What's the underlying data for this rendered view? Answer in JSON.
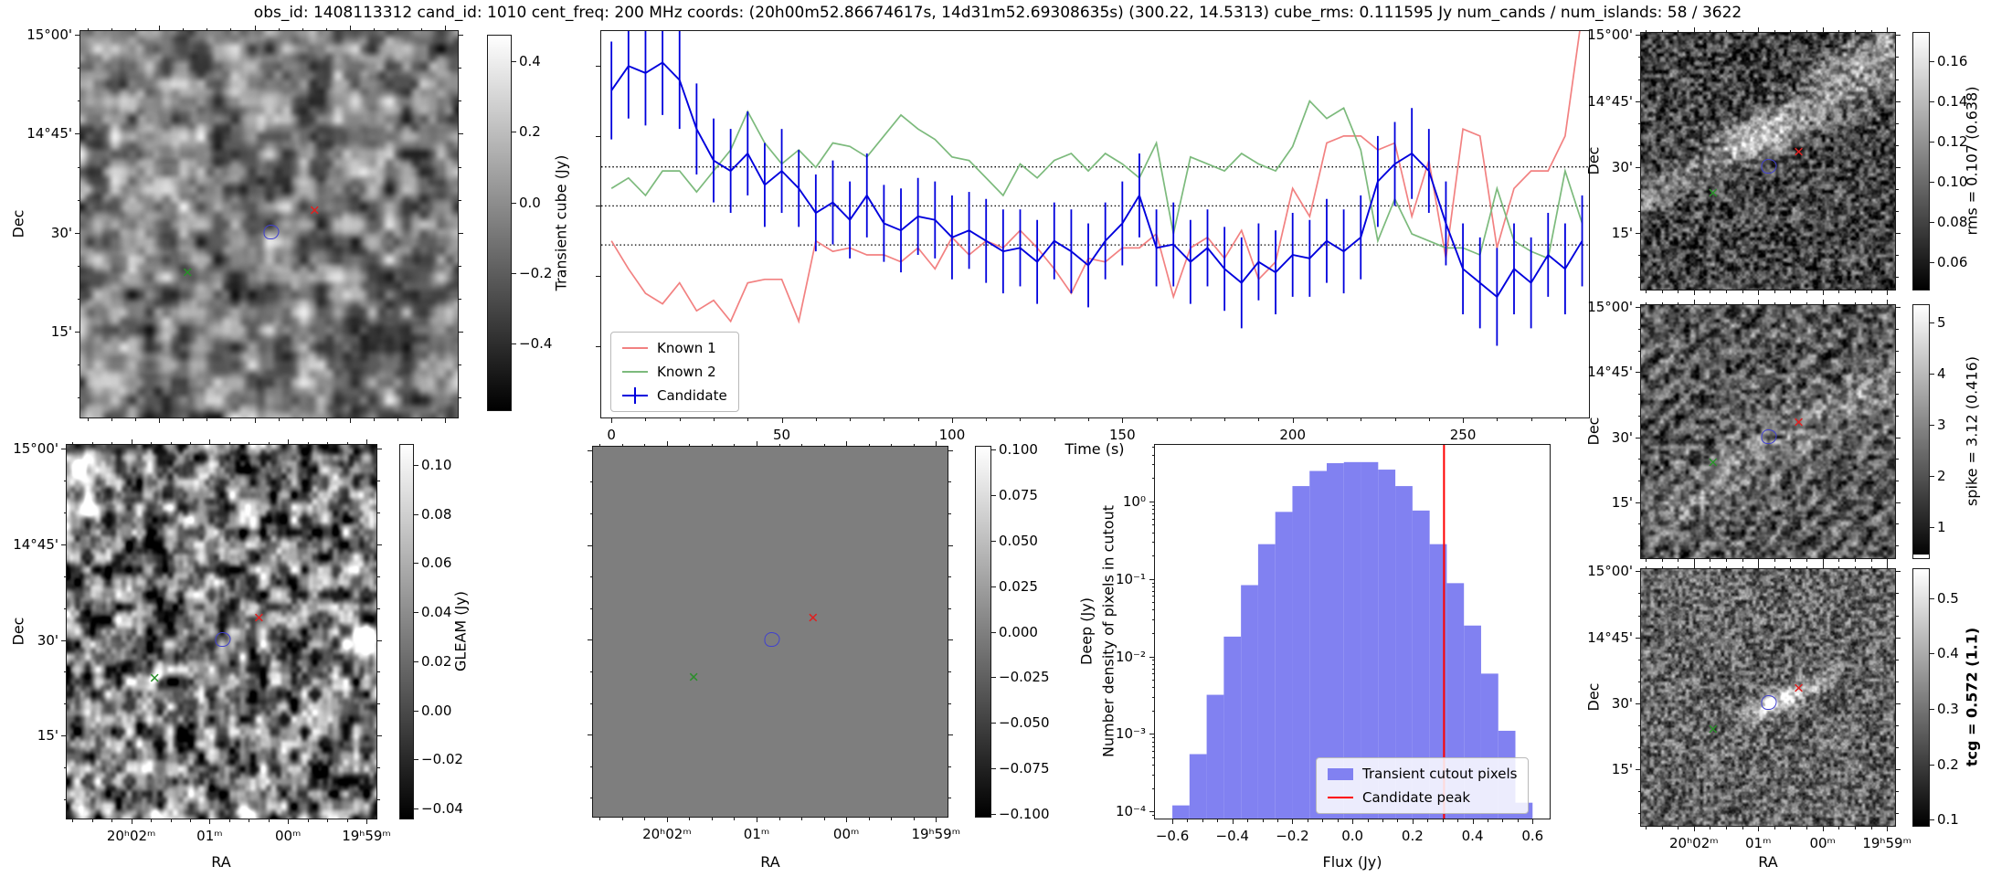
{
  "title": "obs_id: 1408113312 cand_id: 1010 cent_freq: 200 MHz coords: (20h00m52.86674617s, 14d31m52.69308635s) (300.22, 14.5313) cube_rms: 0.111595 Jy num_cands / num_islands: 58 / 3622",
  "axes": {
    "dec_label": "Dec",
    "ra_label": "RA",
    "dec_ticks": {
      "labels": [
        "15°00'",
        "14°45'",
        "30'",
        "15'"
      ],
      "fractions": [
        0.012,
        0.267,
        0.522,
        0.777
      ]
    },
    "ra_ticks": {
      "labels": [
        "20ʰ02ᵐ",
        "01ᵐ",
        "00ᵐ",
        "19ʰ59ᵐ"
      ],
      "fractions": [
        0.21,
        0.4616,
        0.7132,
        0.9648
      ]
    }
  },
  "colorbars": {
    "transient": {
      "label": "Transient cube (Jy)",
      "tick_labels": [
        "0.4",
        "0.2",
        "0.0",
        "−0.2",
        "−0.4"
      ],
      "tick_values": [
        0.4,
        0.2,
        0.0,
        -0.2,
        -0.4
      ],
      "vmin": -0.59,
      "vmax": 0.475
    },
    "gleam": {
      "label": "GLEAM (Jy)",
      "tick_labels": [
        "0.10",
        "0.08",
        "0.06",
        "0.04",
        "0.02",
        "0.00",
        "−0.02",
        "−0.04"
      ],
      "tick_values": [
        0.1,
        0.08,
        0.06,
        0.04,
        0.02,
        0.0,
        -0.02,
        -0.04
      ],
      "vmin": -0.0445,
      "vmax": 0.1086
    },
    "deep": {
      "label": "Deep (Jy)",
      "tick_labels": [
        "0.100",
        "0.075",
        "0.050",
        "0.025",
        "0.000",
        "−0.025",
        "−0.050",
        "−0.075",
        "−0.100"
      ],
      "tick_values": [
        0.1,
        0.075,
        0.05,
        0.025,
        0.0,
        -0.025,
        -0.05,
        -0.075,
        -0.1
      ],
      "vmin": -0.102,
      "vmax": 0.102
    },
    "rms": {
      "label": "rms = 0.107 (0.638)",
      "tick_labels": [
        "0.16",
        "0.14",
        "0.12",
        "0.10",
        "0.08",
        "0.06"
      ],
      "tick_values": [
        0.16,
        0.14,
        0.12,
        0.1,
        0.08,
        0.06
      ],
      "vmin": 0.0459,
      "vmax": 0.1745
    },
    "spike": {
      "label": "spike = 3.12 (0.416)",
      "tick_labels": [
        "5",
        "4",
        "3",
        "2",
        "1"
      ],
      "tick_values": [
        5,
        4,
        3,
        2,
        1
      ],
      "vmin": 0.375,
      "vmax": 5.357
    },
    "tcg": {
      "label": "tcg = 0.572 (1.1)",
      "bold": true,
      "tick_labels": [
        "0.5",
        "0.4",
        "0.3",
        "0.2",
        "0.1"
      ],
      "tick_values": [
        0.5,
        0.4,
        0.3,
        0.2,
        0.1
      ],
      "vmin": 0.0868,
      "vmax": 0.5545
    }
  },
  "markers": {
    "red_x": {
      "fx": 0.62,
      "fy": 0.465,
      "color": "#e02020",
      "glyph": "✕"
    },
    "green_x": {
      "fx": 0.285,
      "fy": 0.625,
      "color": "#2a8f2a",
      "glyph": "✕"
    },
    "blue_contour": {
      "fx": 0.505,
      "fy": 0.52,
      "color": "#4040d0"
    }
  },
  "chart_data": [
    {
      "type": "line",
      "title": "",
      "xlabel": "Time (s)",
      "ylabel": "",
      "xlim": [
        -3,
        287
      ],
      "ylim": [
        -0.605,
        0.5
      ],
      "grid": false,
      "legend_position": "lower left",
      "xtick_labels": [
        "0",
        "50",
        "100",
        "150",
        "200",
        "250"
      ],
      "xtick_values": [
        0,
        50,
        100,
        150,
        200,
        250
      ],
      "hlines": [
        0.111595,
        0.0,
        -0.111595
      ],
      "x": [
        0,
        5,
        10,
        15,
        20,
        25,
        30,
        35,
        40,
        45,
        50,
        55,
        60,
        65,
        70,
        75,
        80,
        85,
        90,
        95,
        100,
        105,
        110,
        115,
        120,
        125,
        130,
        135,
        140,
        145,
        150,
        155,
        160,
        165,
        170,
        175,
        180,
        185,
        190,
        195,
        200,
        205,
        210,
        215,
        220,
        225,
        230,
        235,
        240,
        245,
        250,
        255,
        260,
        265,
        270,
        275,
        280,
        285
      ],
      "series": [
        {
          "name": "Known 1",
          "color": "#f28181",
          "values": [
            -0.1,
            -0.18,
            -0.25,
            -0.28,
            -0.22,
            -0.3,
            -0.27,
            -0.33,
            -0.22,
            -0.21,
            -0.21,
            -0.33,
            -0.1,
            -0.13,
            -0.12,
            -0.14,
            -0.14,
            -0.16,
            -0.12,
            -0.18,
            -0.09,
            -0.14,
            -0.1,
            -0.12,
            -0.07,
            -0.12,
            -0.18,
            -0.25,
            -0.15,
            -0.16,
            -0.12,
            -0.12,
            -0.08,
            -0.26,
            -0.12,
            -0.09,
            -0.15,
            -0.07,
            -0.21,
            -0.16,
            0.05,
            -0.03,
            0.18,
            0.2,
            0.2,
            0.16,
            0.18,
            -0.03,
            0.13,
            -0.15,
            0.22,
            0.2,
            -0.12,
            0.05,
            0.1,
            0.1,
            0.2,
            0.55
          ]
        },
        {
          "name": "Known 2",
          "color": "#7cba7c",
          "values": [
            0.05,
            0.08,
            0.03,
            0.1,
            0.1,
            0.04,
            0.1,
            0.16,
            0.27,
            0.18,
            0.12,
            0.16,
            0.11,
            0.18,
            0.17,
            0.14,
            0.2,
            0.26,
            0.22,
            0.19,
            0.14,
            0.13,
            0.08,
            0.03,
            0.12,
            0.08,
            0.13,
            0.15,
            0.1,
            0.15,
            0.12,
            0.08,
            0.18,
            -0.08,
            0.14,
            0.12,
            0.1,
            0.15,
            0.12,
            0.1,
            0.17,
            0.3,
            0.25,
            0.28,
            0.16,
            -0.1,
            0.02,
            -0.08,
            -0.1,
            -0.12,
            -0.12,
            -0.14,
            0.05,
            -0.1,
            -0.13,
            -0.15,
            0.1,
            -0.05
          ]
        },
        {
          "name": "Candidate",
          "color": "#0000dd",
          "values": [
            0.33,
            0.4,
            0.38,
            0.41,
            0.36,
            0.22,
            0.13,
            0.1,
            0.15,
            0.06,
            0.1,
            0.05,
            -0.02,
            0.01,
            -0.04,
            0.03,
            -0.05,
            -0.07,
            -0.03,
            -0.04,
            -0.09,
            -0.07,
            -0.1,
            -0.13,
            -0.12,
            -0.16,
            -0.1,
            -0.13,
            -0.17,
            -0.1,
            -0.05,
            0.03,
            -0.12,
            -0.11,
            -0.16,
            -0.12,
            -0.18,
            -0.22,
            -0.16,
            -0.19,
            -0.14,
            -0.15,
            -0.1,
            -0.13,
            -0.09,
            0.07,
            0.12,
            0.15,
            0.1,
            -0.05,
            -0.18,
            -0.22,
            -0.26,
            -0.18,
            -0.22,
            -0.14,
            -0.18,
            -0.1
          ],
          "errors": [
            0.14,
            0.15,
            0.15,
            0.15,
            0.14,
            0.13,
            0.12,
            0.12,
            0.12,
            0.12,
            0.12,
            0.11,
            0.11,
            0.12,
            0.11,
            0.12,
            0.11,
            0.12,
            0.11,
            0.11,
            0.12,
            0.11,
            0.12,
            0.12,
            0.11,
            0.12,
            0.11,
            0.12,
            0.12,
            0.11,
            0.12,
            0.12,
            0.11,
            0.12,
            0.12,
            0.11,
            0.12,
            0.13,
            0.11,
            0.12,
            0.12,
            0.11,
            0.12,
            0.12,
            0.12,
            0.13,
            0.12,
            0.13,
            0.12,
            0.12,
            0.13,
            0.13,
            0.14,
            0.13,
            0.13,
            0.12,
            0.13,
            0.13
          ]
        }
      ]
    },
    {
      "type": "bar",
      "title": "",
      "xlabel": "Flux (Jy)",
      "ylabel": "Number density of pixels in cutout",
      "yscale": "log",
      "xlim": [
        -0.658,
        0.657
      ],
      "ylim_exp": [
        -4.09,
        0.727
      ],
      "bar_color": "#8181f1",
      "bin_start": -0.6,
      "bin_width": 0.057143,
      "values": [
        0.00012,
        0.00055,
        0.0032,
        0.018,
        0.083,
        0.28,
        0.73,
        1.57,
        2.46,
        3.1,
        3.2,
        3.2,
        2.56,
        1.57,
        0.76,
        0.28,
        0.088,
        0.025,
        0.006,
        0.0011,
        0.00013
      ],
      "xtick_labels": [
        "−0.6",
        "−0.4",
        "−0.2",
        "0.0",
        "0.2",
        "0.4",
        "0.6"
      ],
      "xtick_values": [
        -0.6,
        -0.4,
        -0.2,
        0.0,
        0.2,
        0.4,
        0.6
      ],
      "ytick_labels": [
        "10⁰",
        "10⁻¹",
        "10⁻²",
        "10⁻³",
        "10⁻⁴"
      ],
      "ytick_exps": [
        0,
        -1,
        -2,
        -3,
        -4
      ],
      "series_label": "Transient cutout pixels",
      "vline": {
        "x": 0.305,
        "color": "#ff0000",
        "label": "Candidate peak"
      }
    }
  ]
}
